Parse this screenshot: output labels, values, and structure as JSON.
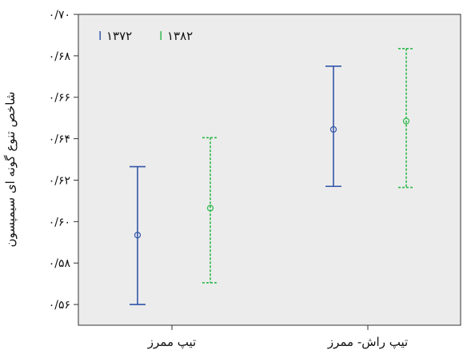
{
  "chart_data": {
    "type": "errorbar",
    "title": "",
    "xlabel": "",
    "ylabel": "شاخص تنوع گونه ای سیمپسون",
    "categories": [
      "تیپ ممرز",
      "تیپ راش- ممرز"
    ],
    "ylim": [
      0.55,
      0.7
    ],
    "yticks": [
      0.56,
      0.58,
      0.6,
      0.62,
      0.64,
      0.66,
      0.68,
      0.7
    ],
    "ytick_labels": [
      "۰/۵۶",
      "۰/۵۸",
      "۰/۶۰",
      "۰/۶۲",
      "۰/۶۴",
      "۰/۶۶",
      "۰/۶۸",
      "۰/۷۰"
    ],
    "grid": false,
    "legend_position": "top-left",
    "series": [
      {
        "name": "۱۳۷۲",
        "color": "#3355a8",
        "line_style": "solid",
        "mean": [
          0.5935,
          0.6445
        ],
        "lower": [
          0.56,
          0.617
        ],
        "upper": [
          0.6265,
          0.675
        ]
      },
      {
        "name": "۱۳۸۲",
        "color": "#2db84a",
        "line_style": "dashed",
        "mean": [
          0.6065,
          0.6485
        ],
        "lower": [
          0.5705,
          0.6165
        ],
        "upper": [
          0.6405,
          0.6835
        ]
      }
    ]
  }
}
